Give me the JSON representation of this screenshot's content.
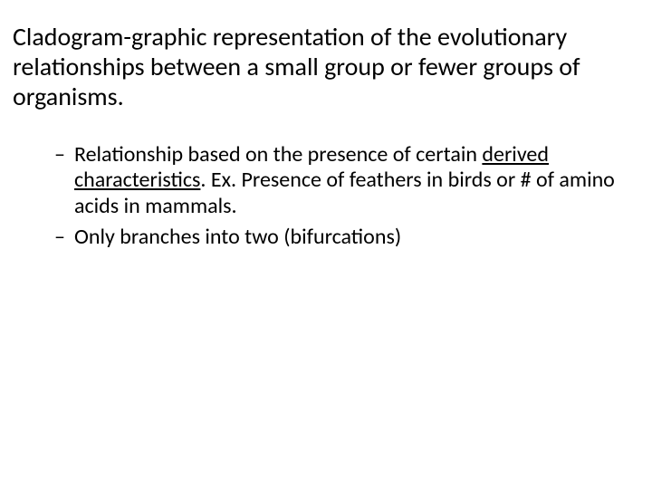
{
  "slide": {
    "title": "Cladogram-graphic representation of the evolutionary relationships between a small group or fewer groups of organisms.",
    "bullets": [
      {
        "pre": "Relationship based on the presence of certain ",
        "underlined": "derived characteristics",
        "post": ".  Ex. Presence of feathers in birds or # of amino acids in mammals."
      },
      {
        "pre": "Only branches into two (bifurcations)",
        "underlined": "",
        "post": ""
      }
    ]
  },
  "style": {
    "background_color": "#ffffff",
    "text_color": "#000000",
    "title_fontsize": 28,
    "body_fontsize": 24,
    "font_family": "Calibri",
    "bullet_glyph": "–"
  }
}
